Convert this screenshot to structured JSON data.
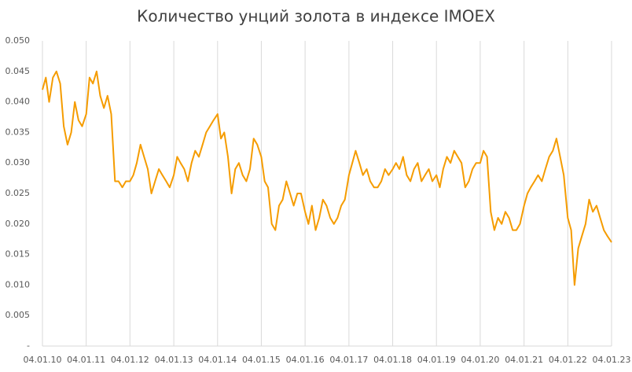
{
  "chart_data": {
    "type": "line",
    "title": "Количество унций золота в индексе IMOEX",
    "x": [
      "2010-01-04",
      "2010-02-01",
      "2010-03-01",
      "2010-04-01",
      "2010-05-01",
      "2010-06-01",
      "2010-07-01",
      "2010-08-01",
      "2010-09-01",
      "2010-10-01",
      "2010-11-01",
      "2010-12-01",
      "2011-01-04",
      "2011-02-01",
      "2011-03-01",
      "2011-04-01",
      "2011-05-01",
      "2011-06-01",
      "2011-07-01",
      "2011-08-01",
      "2011-09-01",
      "2011-10-01",
      "2011-11-01",
      "2011-12-01",
      "2012-01-04",
      "2012-02-01",
      "2012-03-01",
      "2012-04-01",
      "2012-05-01",
      "2012-06-01",
      "2012-07-01",
      "2012-08-01",
      "2012-09-01",
      "2012-10-01",
      "2012-11-01",
      "2012-12-01",
      "2013-01-04",
      "2013-02-01",
      "2013-03-01",
      "2013-04-01",
      "2013-05-01",
      "2013-06-01",
      "2013-07-01",
      "2013-08-01",
      "2013-09-01",
      "2013-10-01",
      "2013-11-01",
      "2013-12-01",
      "2014-01-04",
      "2014-02-01",
      "2014-03-01",
      "2014-04-01",
      "2014-05-01",
      "2014-06-01",
      "2014-07-01",
      "2014-08-01",
      "2014-09-01",
      "2014-10-01",
      "2014-11-01",
      "2014-12-01",
      "2015-01-04",
      "2015-02-01",
      "2015-03-01",
      "2015-04-01",
      "2015-05-01",
      "2015-06-01",
      "2015-07-01",
      "2015-08-01",
      "2015-09-01",
      "2015-10-01",
      "2015-11-01",
      "2015-12-01",
      "2016-01-04",
      "2016-02-01",
      "2016-03-01",
      "2016-04-01",
      "2016-05-01",
      "2016-06-01",
      "2016-07-01",
      "2016-08-01",
      "2016-09-01",
      "2016-10-01",
      "2016-11-01",
      "2016-12-01",
      "2017-01-04",
      "2017-02-01",
      "2017-03-01",
      "2017-04-01",
      "2017-05-01",
      "2017-06-01",
      "2017-07-01",
      "2017-08-01",
      "2017-09-01",
      "2017-10-01",
      "2017-11-01",
      "2017-12-01",
      "2018-01-04",
      "2018-02-01",
      "2018-03-01",
      "2018-04-01",
      "2018-05-01",
      "2018-06-01",
      "2018-07-01",
      "2018-08-01",
      "2018-09-01",
      "2018-10-01",
      "2018-11-01",
      "2018-12-01",
      "2019-01-04",
      "2019-02-01",
      "2019-03-01",
      "2019-04-01",
      "2019-05-01",
      "2019-06-01",
      "2019-07-01",
      "2019-08-01",
      "2019-09-01",
      "2019-10-01",
      "2019-11-01",
      "2019-12-01",
      "2020-01-04",
      "2020-02-01",
      "2020-03-01",
      "2020-04-01",
      "2020-05-01",
      "2020-06-01",
      "2020-07-01",
      "2020-08-01",
      "2020-09-01",
      "2020-10-01",
      "2020-11-01",
      "2020-12-01",
      "2021-01-04",
      "2021-02-01",
      "2021-03-01",
      "2021-04-01",
      "2021-05-01",
      "2021-06-01",
      "2021-07-01",
      "2021-08-01",
      "2021-09-01",
      "2021-10-01",
      "2021-11-01",
      "2021-12-01",
      "2022-01-04",
      "2022-02-01",
      "2022-03-01",
      "2022-04-01",
      "2022-05-01",
      "2022-06-01",
      "2022-07-01",
      "2022-08-01",
      "2022-09-01",
      "2022-10-01",
      "2022-11-01",
      "2022-12-01",
      "2023-01-04"
    ],
    "series": [
      {
        "name": "IMOEX",
        "color": "#f59c00",
        "values": [
          0.042,
          0.044,
          0.04,
          0.044,
          0.045,
          0.043,
          0.036,
          0.033,
          0.035,
          0.04,
          0.037,
          0.036,
          0.038,
          0.044,
          0.043,
          0.045,
          0.041,
          0.039,
          0.041,
          0.038,
          0.027,
          0.027,
          0.026,
          0.027,
          0.027,
          0.028,
          0.03,
          0.033,
          0.031,
          0.029,
          0.025,
          0.027,
          0.029,
          0.028,
          0.027,
          0.026,
          0.028,
          0.031,
          0.03,
          0.029,
          0.027,
          0.03,
          0.032,
          0.031,
          0.033,
          0.035,
          0.036,
          0.037,
          0.038,
          0.034,
          0.035,
          0.031,
          0.025,
          0.029,
          0.03,
          0.028,
          0.027,
          0.029,
          0.034,
          0.033,
          0.031,
          0.027,
          0.026,
          0.02,
          0.019,
          0.023,
          0.024,
          0.027,
          0.025,
          0.023,
          0.025,
          0.025,
          0.022,
          0.02,
          0.023,
          0.019,
          0.021,
          0.024,
          0.023,
          0.021,
          0.02,
          0.021,
          0.023,
          0.024,
          0.028,
          0.03,
          0.032,
          0.03,
          0.028,
          0.029,
          0.027,
          0.026,
          0.026,
          0.027,
          0.029,
          0.028,
          0.029,
          0.03,
          0.029,
          0.031,
          0.028,
          0.027,
          0.029,
          0.03,
          0.027,
          0.028,
          0.029,
          0.027,
          0.028,
          0.026,
          0.029,
          0.031,
          0.03,
          0.032,
          0.031,
          0.03,
          0.026,
          0.027,
          0.029,
          0.03,
          0.03,
          0.032,
          0.031,
          0.022,
          0.019,
          0.021,
          0.02,
          0.022,
          0.021,
          0.019,
          0.019,
          0.02,
          0.023,
          0.025,
          0.026,
          0.027,
          0.028,
          0.027,
          0.029,
          0.031,
          0.032,
          0.034,
          0.031,
          0.028,
          0.021,
          0.019,
          0.01,
          0.016,
          0.018,
          0.02,
          0.024,
          0.022,
          0.023,
          0.021,
          0.019,
          0.018,
          0.017
        ]
      }
    ],
    "xlim": [
      "2010-01-04",
      "2023-01-04"
    ],
    "xticks": [
      {
        "value": "2010-01-04",
        "label": "04.01.10"
      },
      {
        "value": "2011-01-04",
        "label": "04.01.11"
      },
      {
        "value": "2012-01-04",
        "label": "04.01.12"
      },
      {
        "value": "2013-01-04",
        "label": "04.01.13"
      },
      {
        "value": "2014-01-04",
        "label": "04.01.14"
      },
      {
        "value": "2015-01-04",
        "label": "04.01.15"
      },
      {
        "value": "2016-01-04",
        "label": "04.01.16"
      },
      {
        "value": "2017-01-04",
        "label": "04.01.17"
      },
      {
        "value": "2018-01-04",
        "label": "04.01.18"
      },
      {
        "value": "2019-01-04",
        "label": "04.01.19"
      },
      {
        "value": "2020-01-04",
        "label": "04.01.20"
      },
      {
        "value": "2021-01-04",
        "label": "04.01.21"
      },
      {
        "value": "2022-01-04",
        "label": "04.01.22"
      },
      {
        "value": "2023-01-04",
        "label": "04.01.23"
      }
    ],
    "ylim": [
      0,
      0.05
    ],
    "yticks": [
      {
        "value": 0,
        "label": "-"
      },
      0.005,
      {
        "value": 0.01,
        "label": "0.010"
      },
      0.015,
      {
        "value": 0.02,
        "label": "0.020"
      },
      0.025,
      {
        "value": 0.03,
        "label": "0.030"
      },
      0.035,
      {
        "value": 0.04,
        "label": "0.040"
      },
      0.045,
      {
        "value": 0.05,
        "label": "0.050"
      }
    ],
    "grid": "x"
  }
}
